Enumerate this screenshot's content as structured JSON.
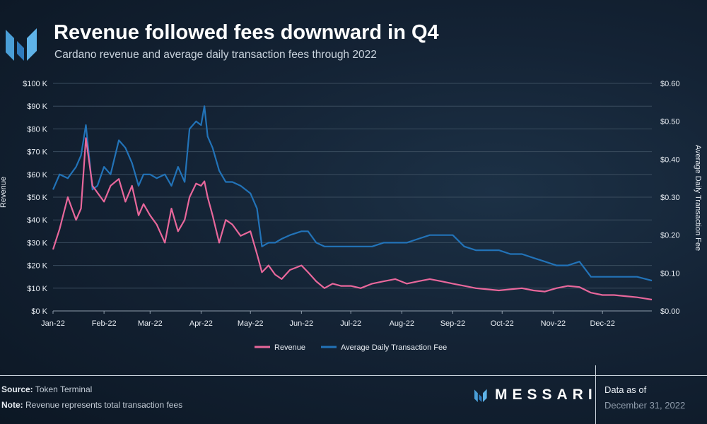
{
  "header": {
    "title": "Revenue followed fees downward in Q4",
    "subtitle": "Cardano revenue and average daily transaction fees through 2022"
  },
  "footer": {
    "source_label": "Source:",
    "source_value": "Token Terminal",
    "note_label": "Note:",
    "note_value": "Revenue represents total transaction fees",
    "brand": "MESSARI",
    "asof_label": "Data as of",
    "asof_date": "December 31, 2022"
  },
  "colors": {
    "revenue": "#e8679b",
    "fee": "#2273b8",
    "grid": "#3a4c5e",
    "brand_blue": "#4a9fd8"
  },
  "chart_data": {
    "type": "line",
    "title": "Revenue followed fees downward in Q4",
    "subtitle": "Cardano revenue and average daily transaction fees through 2022",
    "ylabel": "Revenue",
    "y2label": "Average Daily Transaction Fee",
    "ylim": [
      0,
      100000
    ],
    "y2lim": [
      0,
      0.6
    ],
    "y_ticks": [
      "$0 K",
      "$10 K",
      "$20 K",
      "$30 K",
      "$40 K",
      "$50 K",
      "$60 K",
      "$70 K",
      "$80 K",
      "$90 K",
      "$100 K"
    ],
    "y2_ticks": [
      "$0.00",
      "$0.10",
      "$0.20",
      "$0.30",
      "$0.40",
      "$0.50",
      "$0.60"
    ],
    "x_ticks": [
      "Jan-22",
      "Feb-22",
      "Mar-22",
      "Apr-22",
      "May-22",
      "Jun-22",
      "Jul-22",
      "Aug-22",
      "Sep-22",
      "Oct-22",
      "Nov-22",
      "Dec-22"
    ],
    "grid": true,
    "legend": "bottom-center",
    "x": [
      "2022-01-01",
      "2022-01-05",
      "2022-01-10",
      "2022-01-15",
      "2022-01-18",
      "2022-01-21",
      "2022-01-25",
      "2022-01-28",
      "2022-02-01",
      "2022-02-05",
      "2022-02-10",
      "2022-02-14",
      "2022-02-18",
      "2022-02-22",
      "2022-02-25",
      "2022-03-01",
      "2022-03-05",
      "2022-03-10",
      "2022-03-14",
      "2022-03-18",
      "2022-03-22",
      "2022-03-25",
      "2022-03-29",
      "2022-04-01",
      "2022-04-03",
      "2022-04-05",
      "2022-04-08",
      "2022-04-12",
      "2022-04-16",
      "2022-04-20",
      "2022-04-25",
      "2022-05-01",
      "2022-05-05",
      "2022-05-08",
      "2022-05-12",
      "2022-05-16",
      "2022-05-20",
      "2022-05-25",
      "2022-06-01",
      "2022-06-05",
      "2022-06-10",
      "2022-06-15",
      "2022-06-20",
      "2022-06-25",
      "2022-07-01",
      "2022-07-07",
      "2022-07-14",
      "2022-07-21",
      "2022-07-28",
      "2022-08-04",
      "2022-08-11",
      "2022-08-18",
      "2022-08-25",
      "2022-09-01",
      "2022-09-08",
      "2022-09-15",
      "2022-09-22",
      "2022-09-29",
      "2022-10-06",
      "2022-10-13",
      "2022-10-20",
      "2022-10-27",
      "2022-11-03",
      "2022-11-10",
      "2022-11-17",
      "2022-11-24",
      "2022-12-01",
      "2022-12-08",
      "2022-12-15",
      "2022-12-22",
      "2022-12-31"
    ],
    "series": [
      {
        "name": "Revenue",
        "axis": "left",
        "values": [
          27000,
          36000,
          50000,
          40000,
          45000,
          76000,
          55000,
          52000,
          48000,
          55000,
          58000,
          48000,
          55000,
          42000,
          47000,
          42000,
          38000,
          30000,
          45000,
          35000,
          40000,
          50000,
          56000,
          55000,
          57000,
          50000,
          42000,
          30000,
          40000,
          38000,
          33000,
          35000,
          25000,
          17000,
          20000,
          16000,
          14000,
          18000,
          20000,
          17000,
          13000,
          10000,
          12000,
          11000,
          11000,
          10000,
          12000,
          13000,
          14000,
          12000,
          13000,
          14000,
          13000,
          12000,
          11000,
          10000,
          9500,
          9000,
          9500,
          10000,
          9000,
          8500,
          10000,
          11000,
          10500,
          8000,
          7000,
          7000,
          6500,
          6000,
          5000
        ]
      },
      {
        "name": "Average Daily Transaction Fee",
        "axis": "right",
        "values": [
          0.32,
          0.36,
          0.35,
          0.38,
          0.41,
          0.49,
          0.32,
          0.33,
          0.38,
          0.36,
          0.45,
          0.43,
          0.39,
          0.33,
          0.36,
          0.36,
          0.35,
          0.36,
          0.33,
          0.38,
          0.34,
          0.48,
          0.5,
          0.49,
          0.54,
          0.46,
          0.43,
          0.37,
          0.34,
          0.34,
          0.33,
          0.31,
          0.27,
          0.17,
          0.18,
          0.18,
          0.19,
          0.2,
          0.21,
          0.21,
          0.18,
          0.17,
          0.17,
          0.17,
          0.17,
          0.17,
          0.17,
          0.18,
          0.18,
          0.18,
          0.19,
          0.2,
          0.2,
          0.2,
          0.17,
          0.16,
          0.16,
          0.16,
          0.15,
          0.15,
          0.14,
          0.13,
          0.12,
          0.12,
          0.13,
          0.09,
          0.09,
          0.09,
          0.09,
          0.09,
          0.08
        ]
      }
    ]
  }
}
